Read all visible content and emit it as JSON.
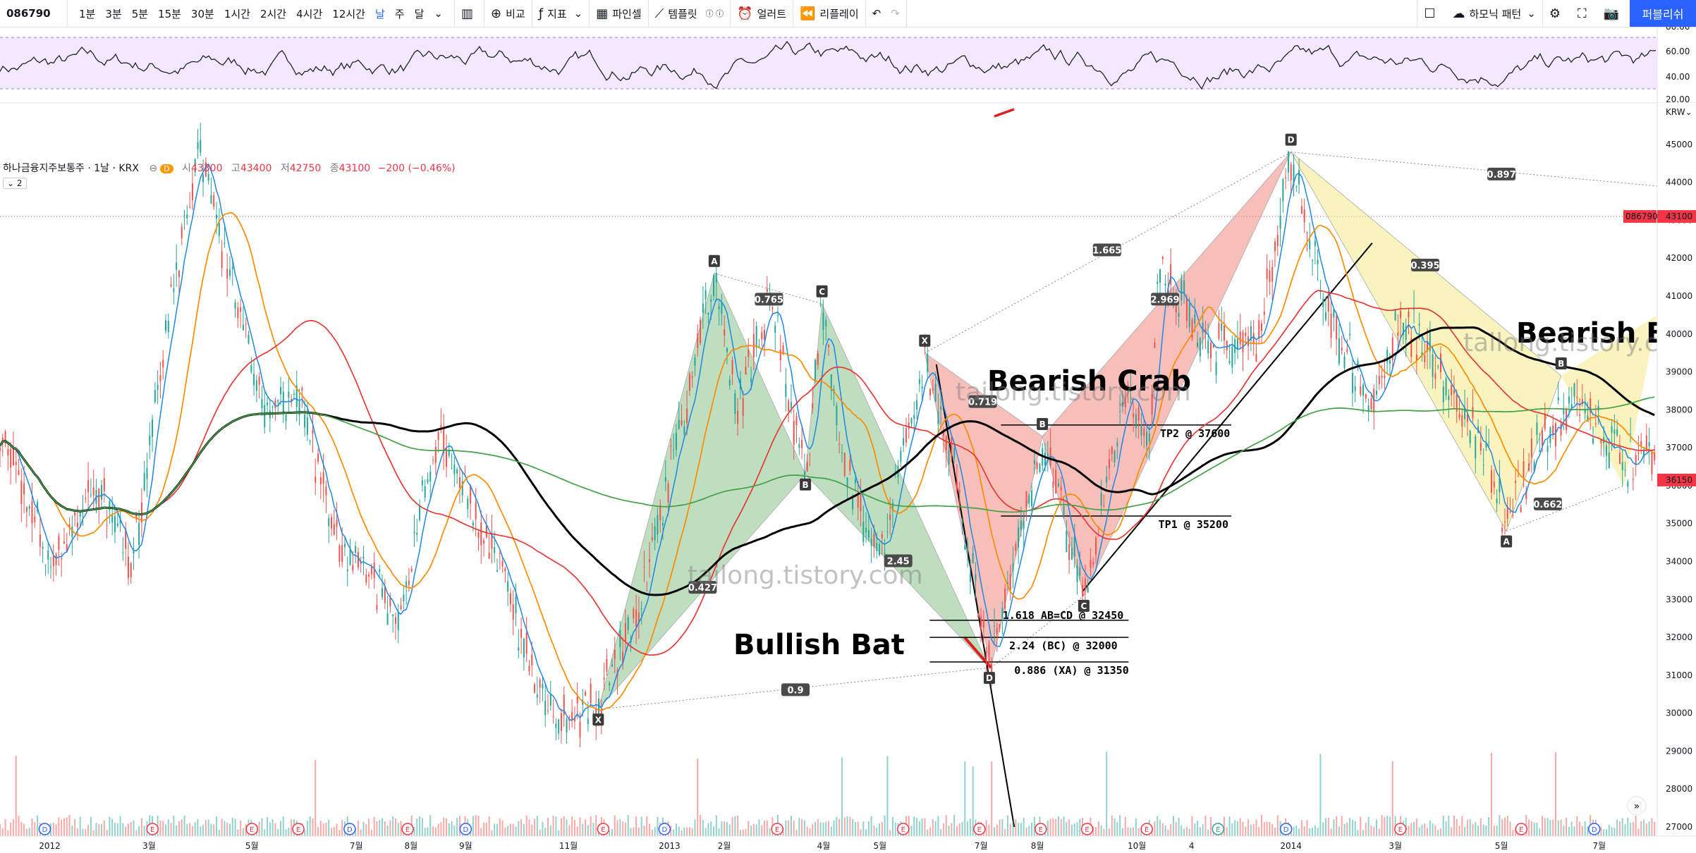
{
  "toolbar": {
    "symbol": "086790",
    "timeframes": [
      "1분",
      "3분",
      "5분",
      "15분",
      "30분",
      "1시간",
      "2시간",
      "4시간",
      "12시간",
      "날",
      "주",
      "달"
    ],
    "active_timeframe": "날",
    "compare": "비교",
    "indicators": "지표",
    "pine": "파인셀",
    "templates": "템플릿",
    "alert": "얼러트",
    "replay": "리플레이",
    "harmonic": "하모닉 패턴",
    "publish": "퍼블리쉬",
    "currency": "KRW"
  },
  "legend": {
    "title": "하나금융지주보통주 · 1날 · KRX",
    "open_label": "시",
    "open": "43300",
    "high_label": "고",
    "high": "43400",
    "low_label": "저",
    "low": "42750",
    "close_label": "종",
    "close": "43100",
    "change": "−200 (−0.46%)",
    "toggle": "2"
  },
  "chart_data": {
    "type": "candlestick",
    "price_axis": [
      "45000",
      "44000",
      "43000",
      "42000",
      "41000",
      "40000",
      "39000",
      "38000",
      "37000",
      "36000",
      "35000",
      "34000",
      "33000",
      "32000",
      "31000",
      "30000",
      "29000",
      "28000",
      "27000"
    ],
    "price_range": [
      27000,
      45500
    ],
    "last_price_tag": {
      "symbol": "086790",
      "price": "43100"
    },
    "cur_price_tag": "36150",
    "time_axis": [
      {
        "label": "2012",
        "x": 0.03
      },
      {
        "label": "3월",
        "x": 0.09
      },
      {
        "label": "5월",
        "x": 0.152
      },
      {
        "label": "7월",
        "x": 0.215
      },
      {
        "label": "8월",
        "x": 0.248
      },
      {
        "label": "9월",
        "x": 0.281
      },
      {
        "label": "11월",
        "x": 0.343
      },
      {
        "label": "2013",
        "x": 0.404
      },
      {
        "label": "2월",
        "x": 0.437
      },
      {
        "label": "4월",
        "x": 0.497
      },
      {
        "label": "5월",
        "x": 0.531
      },
      {
        "label": "7월",
        "x": 0.592
      },
      {
        "label": "8월",
        "x": 0.626
      },
      {
        "label": "10월",
        "x": 0.686
      },
      {
        "label": "4",
        "x": 0.719
      },
      {
        "label": "2014",
        "x": 0.779
      },
      {
        "label": "3월",
        "x": 0.842
      },
      {
        "label": "5월",
        "x": 0.906
      },
      {
        "label": "7월",
        "x": 0.965
      }
    ],
    "rsi_axis": [
      "80.00",
      "60.00",
      "40.00",
      "20.00"
    ],
    "patterns": [
      {
        "name": "Bullish Bat",
        "points": {
          "X": [
            0.361,
            30100
          ],
          "A": [
            0.431,
            41600
          ],
          "B": [
            0.486,
            36300
          ],
          "C": [
            0.496,
            40800
          ],
          "D": [
            0.597,
            31200
          ]
        },
        "ratios": [
          {
            "t": "0.427",
            "at": [
              0.424,
              33300
            ]
          },
          {
            "t": "0.765",
            "at": [
              0.464,
              40900
            ]
          },
          {
            "t": "2.45",
            "at": [
              0.542,
              34000
            ]
          },
          {
            "t": "0.9",
            "at": [
              0.48,
              30600
            ]
          }
        ]
      },
      {
        "name": "Bearish Crab",
        "points": {
          "X": [
            0.558,
            39500
          ],
          "A": [
            0.598,
            31200
          ],
          "B": [
            0.629,
            37300
          ],
          "C": [
            0.654,
            33100
          ],
          "D": [
            0.779,
            44800
          ]
        },
        "ratios": [
          {
            "t": "0.719",
            "at": [
              0.593,
              38200
            ]
          },
          {
            "t": "2.969",
            "at": [
              0.703,
              40900
            ]
          },
          {
            "t": "1.665",
            "at": [
              0.668,
              42200
            ]
          }
        ]
      },
      {
        "name": "Bearish Bat",
        "points": {
          "X": [
            0.779,
            44800
          ],
          "A": [
            0.909,
            34800
          ],
          "B": [
            0.942,
            38900
          ],
          "C": [
            0.98,
            36000
          ]
        },
        "ratios": [
          {
            "t": "0.897",
            "at": [
              0.906,
              44200
            ]
          },
          {
            "t": "0.395",
            "at": [
              0.86,
              41800
            ]
          },
          {
            "t": "0.662",
            "at": [
              0.934,
              35500
            ]
          }
        ]
      }
    ],
    "levels": [
      {
        "label": "1.618 AB=CD @ 32450",
        "price": 32450
      },
      {
        "label": "2.24 (BC) @ 32000",
        "price": 32000
      },
      {
        "label": "0.886 (XA) @ 31350",
        "price": 31350
      },
      {
        "label": "TP1 @ 35200",
        "price": 35200
      },
      {
        "label": "TP2 @ 37600",
        "price": 37600
      }
    ]
  },
  "watermark": "tailong.tistory.com",
  "colors": {
    "up": "#26a69a",
    "down": "#ef5350",
    "bull": "#8bc38b",
    "bear": "#f28b82",
    "bat2": "#f5ea8c",
    "rsi": "#e9d5ff"
  }
}
